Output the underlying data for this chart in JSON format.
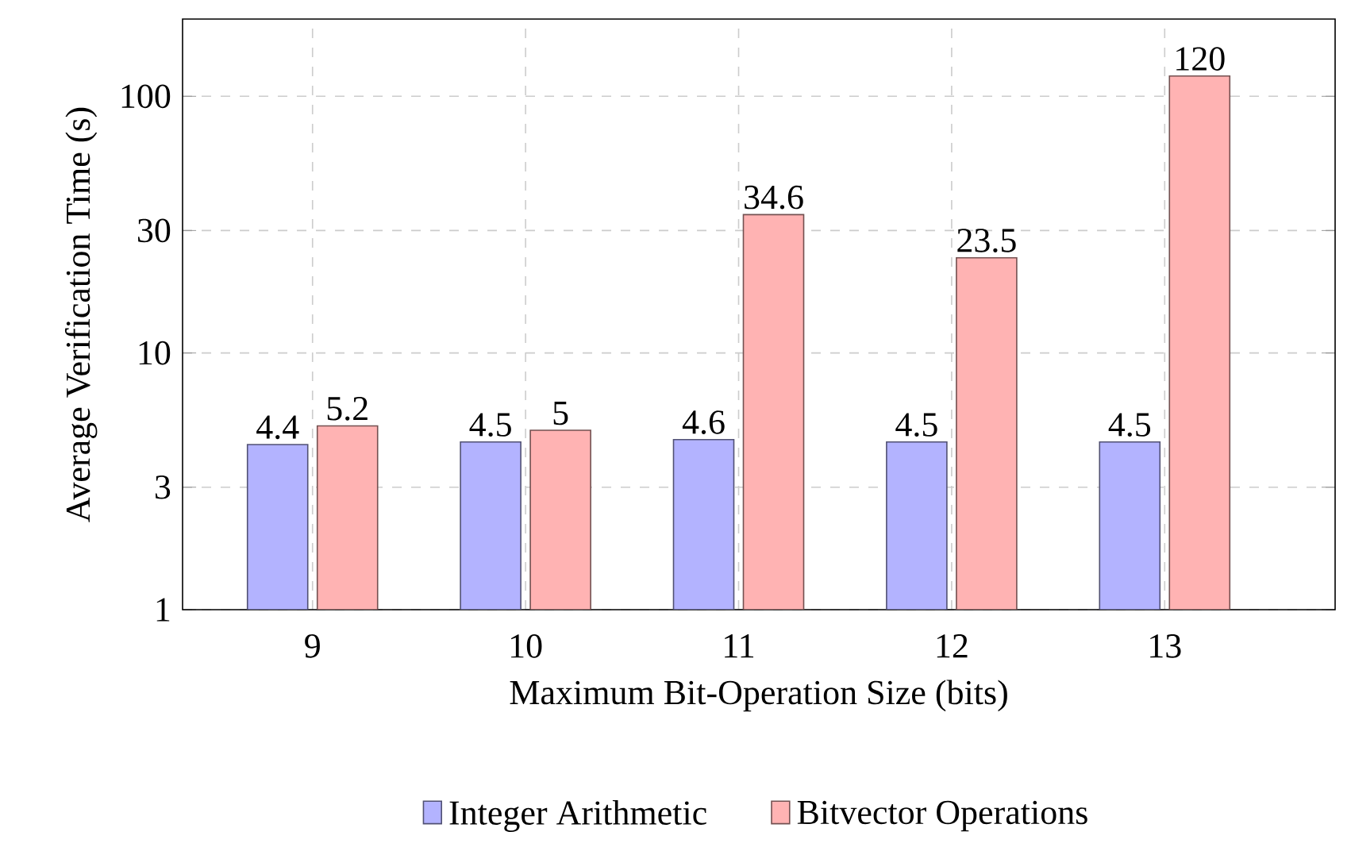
{
  "chart_data": {
    "type": "bar",
    "xlabel": "Maximum Bit-Operation Size (bits)",
    "ylabel": "Average Verification Time (s)",
    "categories": [
      "9",
      "10",
      "11",
      "12",
      "13"
    ],
    "series": [
      {
        "name": "Integer Arithmetic",
        "color": "#b3b3ff",
        "values": [
          4.4,
          4.5,
          4.6,
          4.5,
          4.5
        ]
      },
      {
        "name": "Bitvector Operations",
        "color": "#ffb3b3",
        "values": [
          5.2,
          5,
          34.6,
          23.5,
          120
        ]
      }
    ],
    "log": true,
    "ylim": [
      1,
      200
    ],
    "yticks": [
      1,
      3,
      10,
      30,
      100
    ],
    "grid": true,
    "legend": "bottom",
    "data_labels": true
  }
}
